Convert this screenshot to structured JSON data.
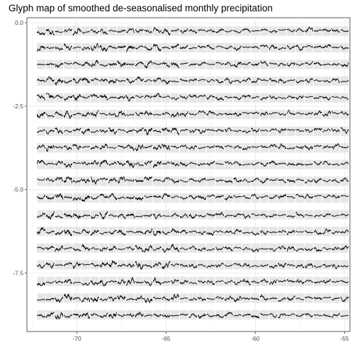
{
  "chart_data": {
    "type": "line",
    "title": "Glyph map of smoothed de-seasonalised monthly precipitation",
    "xlabel": "",
    "ylabel": "",
    "xlim": [
      -72.8,
      -54.7
    ],
    "ylim": [
      -9.25,
      0.15
    ],
    "x_ticks": [
      -70,
      -65,
      -60,
      -55
    ],
    "y_ticks": [
      0.0,
      -2.5,
      -5.0,
      -7.5
    ],
    "x_tick_labels": [
      "-70",
      "-65",
      "-60",
      "-55"
    ],
    "y_tick_labels": [
      "0.0",
      "-2.5",
      "-5.0",
      "-7.5"
    ],
    "grid": true,
    "legend": "none",
    "glyph_grid": {
      "longitude_start": -72,
      "longitude_end": -55,
      "longitude_step": 0.5,
      "latitude_start": -0.25,
      "latitude_end": -8.75,
      "latitude_step": -0.5,
      "cell_width_deg": 0.46,
      "glyph_amplitude_deg": 0.14,
      "background_color": "#e6e6e6",
      "line_color": "#000000"
    }
  }
}
